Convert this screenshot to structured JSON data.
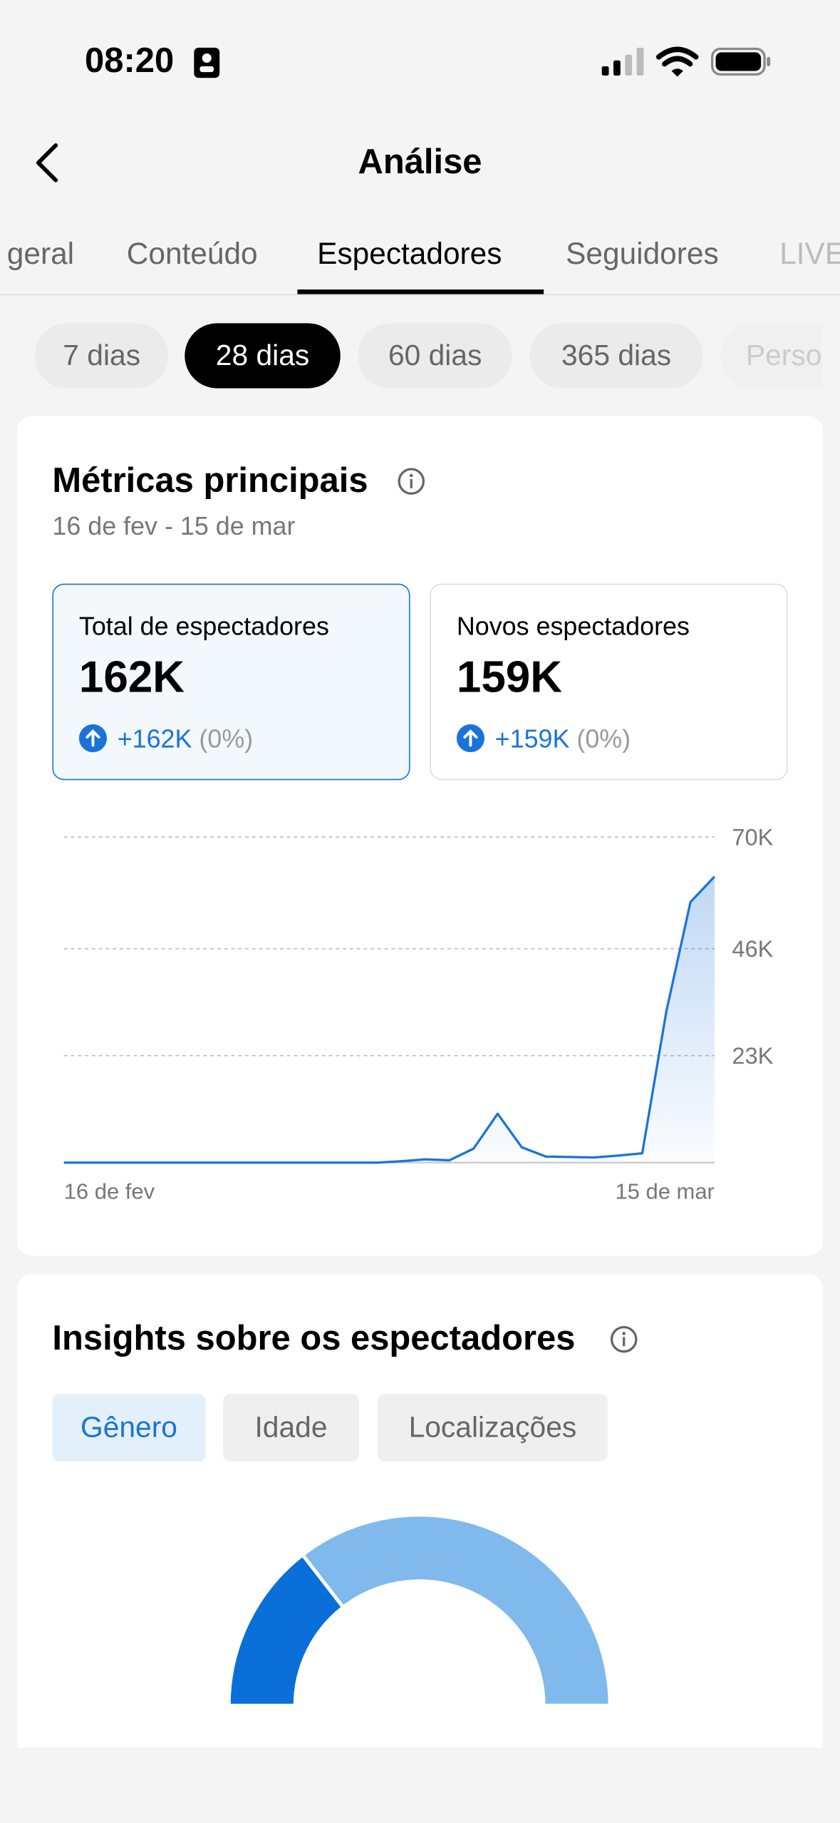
{
  "status_bar": {
    "time": "08:20"
  },
  "header": {
    "title": "Análise"
  },
  "tabs": [
    "geral",
    "Conteúdo",
    "Espectadores",
    "Seguidores",
    "LIVE"
  ],
  "periods": [
    "7 dias",
    "28 dias",
    "60 dias",
    "365 dias",
    "Personalizado"
  ],
  "metrics_card": {
    "title": "Métricas principais",
    "date_range": "16 de fev - 15 de mar",
    "metrics": [
      {
        "label": "Total de espectadores",
        "value": "162K",
        "change": "+162K",
        "percent": "(0%)"
      },
      {
        "label": "Novos espectadores",
        "value": "159K",
        "change": "+159K",
        "percent": "(0%)"
      }
    ]
  },
  "insights_card": {
    "title": "Insights sobre os espectadores",
    "tabs": [
      "Gênero",
      "Idade",
      "Localizações"
    ]
  },
  "chart_data": [
    {
      "type": "line",
      "categories": [
        "16 de fev",
        null,
        null,
        null,
        null,
        null,
        null,
        null,
        null,
        null,
        null,
        null,
        null,
        null,
        null,
        null,
        null,
        null,
        null,
        null,
        null,
        null,
        null,
        null,
        null,
        null,
        null,
        "15 de mar"
      ],
      "series": [
        {
          "color": "#1a73d9",
          "values": [
            0,
            0,
            0,
            0,
            0,
            0,
            0,
            0,
            0,
            0,
            0,
            0,
            0,
            0,
            300,
            700,
            500,
            3000,
            10500,
            3300,
            1300,
            1200,
            1100,
            1500,
            2000,
            32500,
            56000,
            61500
          ]
        }
      ],
      "ylim": [
        0,
        70000
      ],
      "yticks": [
        {
          "value": 23000,
          "label": "23K"
        },
        {
          "value": 46000,
          "label": "46K"
        },
        {
          "value": 70000,
          "label": "70K"
        }
      ],
      "grid": true
    },
    {
      "type": "donut",
      "values": [
        29,
        71
      ],
      "colors": [
        "#0a6fd8",
        "#80b9ec"
      ]
    }
  ]
}
